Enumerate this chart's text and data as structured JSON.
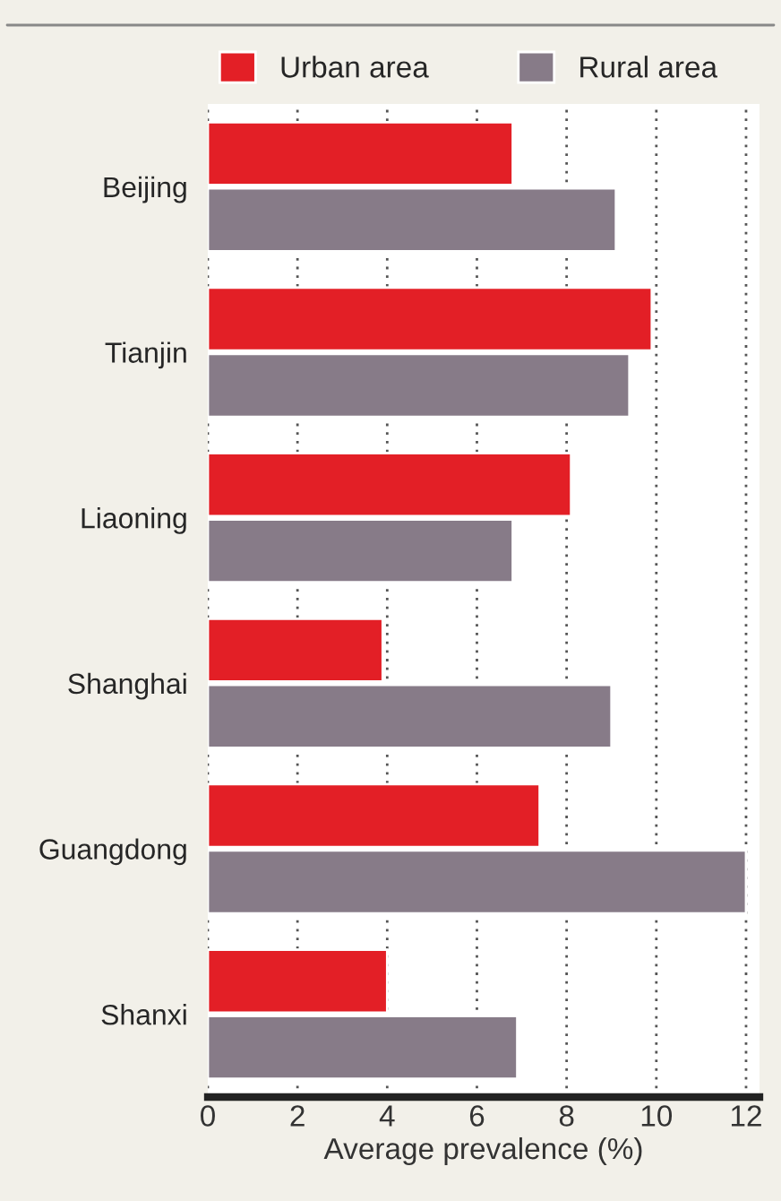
{
  "chart_data": {
    "type": "bar",
    "orientation": "horizontal",
    "xlabel": "Average prevalence (%)",
    "categories": [
      "Beijing",
      "Tianjin",
      "Liaoning",
      "Shanghai",
      "Guangdong",
      "Shanxi"
    ],
    "series": [
      {
        "name": "Urban area",
        "color": "#e31f26",
        "values": [
          6.8,
          9.9,
          8.1,
          3.9,
          7.4,
          4.0
        ]
      },
      {
        "name": "Rural area",
        "color": "#877b88",
        "values": [
          9.1,
          9.4,
          6.8,
          9.0,
          12.0,
          6.9
        ]
      }
    ],
    "xlim": [
      0,
      12.3
    ],
    "xticks": [
      0,
      2,
      4,
      6,
      8,
      10,
      12
    ],
    "grid": "x",
    "legend": "top"
  }
}
